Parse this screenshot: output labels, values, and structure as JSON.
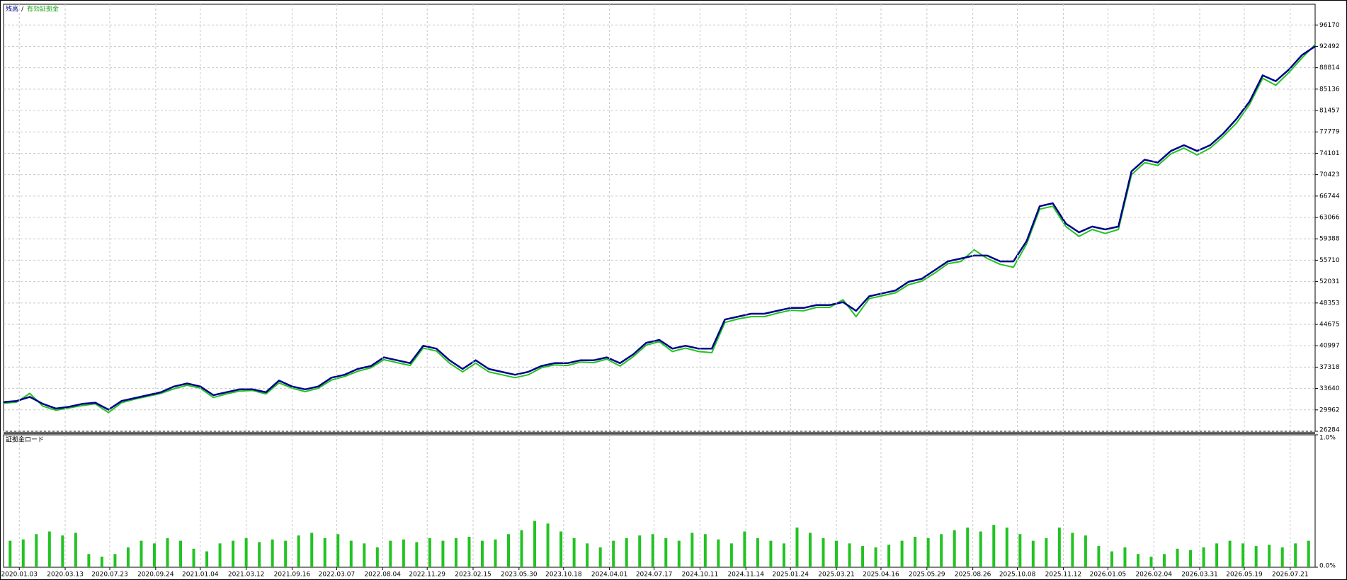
{
  "chart_data": [
    {
      "type": "line",
      "legend_separator": "/",
      "series": [
        {
          "name": "残高",
          "color": "#00008b",
          "values": [
            31300,
            31500,
            32200,
            31000,
            30200,
            30500,
            31000,
            31200,
            30000,
            31500,
            32000,
            32500,
            33000,
            34000,
            34500,
            34000,
            32500,
            33000,
            33500,
            33500,
            33000,
            35000,
            34000,
            33500,
            34000,
            35500,
            36000,
            37000,
            37500,
            39000,
            38500,
            38000,
            41000,
            40500,
            38500,
            37000,
            38500,
            37000,
            36500,
            36000,
            36500,
            37500,
            38000,
            38000,
            38500,
            38500,
            39000,
            38000,
            39500,
            41500,
            42000,
            40500,
            41000,
            40500,
            40500,
            45500,
            46000,
            46500,
            46500,
            47000,
            47500,
            47500,
            48000,
            48000,
            48500,
            47000,
            49500,
            50000,
            50500,
            52000,
            52500,
            54000,
            55500,
            56000,
            56500,
            56500,
            55500,
            55500,
            59000,
            65000,
            65500,
            62000,
            60500,
            61500,
            61000,
            61500,
            71000,
            73000,
            72500,
            74500,
            75500,
            74500,
            75500,
            77500,
            80000,
            83000,
            87500,
            86500,
            88500,
            91000,
            92500
          ]
        },
        {
          "name": "有効証拠金",
          "color": "#22c322",
          "values": [
            31100,
            31300,
            32800,
            30600,
            29900,
            30300,
            30700,
            31000,
            29500,
            31200,
            31800,
            32300,
            32800,
            33600,
            34200,
            33700,
            32100,
            32700,
            33200,
            33300,
            32700,
            34600,
            33700,
            33100,
            33700,
            35100,
            35700,
            36600,
            37200,
            38600,
            38100,
            37600,
            40600,
            40100,
            38000,
            36500,
            38000,
            36500,
            36000,
            35500,
            36000,
            37200,
            37700,
            37600,
            38200,
            38100,
            38700,
            37500,
            39100,
            41100,
            41700,
            40000,
            40600,
            40000,
            39800,
            45000,
            45600,
            46000,
            46000,
            46600,
            47100,
            47000,
            47600,
            47600,
            48900,
            46000,
            49100,
            49600,
            50100,
            51500,
            52100,
            53500,
            55100,
            55500,
            57500,
            56000,
            55000,
            54500,
            58500,
            64500,
            65000,
            61500,
            59800,
            61000,
            60300,
            61000,
            70400,
            72500,
            72000,
            74000,
            75000,
            73800,
            75000,
            77000,
            79300,
            82500,
            87000,
            85800,
            88000,
            90500,
            92800
          ]
        }
      ],
      "xlim": [
        0,
        100
      ],
      "ylim": [
        26284,
        99734
      ],
      "yticks": [
        26284,
        29962,
        33640,
        37318,
        40997,
        44675,
        48353,
        52031,
        55710,
        59388,
        63066,
        66744,
        70423,
        74101,
        77779,
        81457,
        85136,
        88814,
        92492,
        96170
      ],
      "grid": true
    },
    {
      "type": "bar",
      "title": "証拠金ロード",
      "color": "#22c322",
      "values": [
        0.2,
        0.21,
        0.25,
        0.27,
        0.24,
        0.26,
        0.1,
        0.08,
        0.1,
        0.15,
        0.2,
        0.18,
        0.22,
        0.2,
        0.14,
        0.12,
        0.18,
        0.2,
        0.22,
        0.19,
        0.21,
        0.2,
        0.24,
        0.26,
        0.22,
        0.25,
        0.2,
        0.18,
        0.15,
        0.2,
        0.21,
        0.19,
        0.22,
        0.2,
        0.22,
        0.23,
        0.2,
        0.21,
        0.25,
        0.28,
        0.35,
        0.33,
        0.27,
        0.22,
        0.18,
        0.15,
        0.2,
        0.22,
        0.24,
        0.25,
        0.22,
        0.2,
        0.26,
        0.25,
        0.21,
        0.18,
        0.27,
        0.22,
        0.2,
        0.18,
        0.3,
        0.26,
        0.22,
        0.2,
        0.18,
        0.16,
        0.15,
        0.17,
        0.2,
        0.23,
        0.22,
        0.25,
        0.28,
        0.3,
        0.27,
        0.32,
        0.3,
        0.25,
        0.2,
        0.22,
        0.3,
        0.26,
        0.24,
        0.16,
        0.12,
        0.15,
        0.1,
        0.08,
        0.1,
        0.14,
        0.13,
        0.15,
        0.18,
        0.2,
        0.18,
        0.16,
        0.17,
        0.15,
        0.18,
        0.2
      ],
      "xlim": [
        0,
        100
      ],
      "ylim": [
        0,
        1
      ],
      "yticks": [
        {
          "value": 1,
          "label": "1.0%"
        },
        {
          "value": 0,
          "label": "0.0%"
        }
      ],
      "xticks": [
        {
          "value": 1.2,
          "label": "2020.01.03"
        },
        {
          "value": 4.7,
          "label": "2020.03.13"
        },
        {
          "value": 8.1,
          "label": "2020.07.23"
        },
        {
          "value": 11.6,
          "label": "2020.09.24"
        },
        {
          "value": 15.0,
          "label": "2021.01.04"
        },
        {
          "value": 18.5,
          "label": "2021.03.12"
        },
        {
          "value": 22.0,
          "label": "2021.09.16"
        },
        {
          "value": 25.4,
          "label": "2022.03.07"
        },
        {
          "value": 28.9,
          "label": "2022.08.04"
        },
        {
          "value": 32.3,
          "label": "2022.11.29"
        },
        {
          "value": 35.8,
          "label": "2023.02.15"
        },
        {
          "value": 39.3,
          "label": "2023.05.30"
        },
        {
          "value": 42.7,
          "label": "2023.10.18"
        },
        {
          "value": 46.2,
          "label": "2024.04.01"
        },
        {
          "value": 49.6,
          "label": "2024.07.17"
        },
        {
          "value": 53.1,
          "label": "2024.10.11"
        },
        {
          "value": 56.6,
          "label": "2024.11.14"
        },
        {
          "value": 60.0,
          "label": "2025.01.24"
        },
        {
          "value": 63.5,
          "label": "2025.03.21"
        },
        {
          "value": 66.9,
          "label": "2025.04.16"
        },
        {
          "value": 70.4,
          "label": "2025.05.29"
        },
        {
          "value": 73.9,
          "label": "2025.08.26"
        },
        {
          "value": 77.3,
          "label": "2025.10.08"
        },
        {
          "value": 80.8,
          "label": "2025.11.12"
        },
        {
          "value": 84.2,
          "label": "2026.01.05"
        },
        {
          "value": 87.7,
          "label": "2026.02.04"
        },
        {
          "value": 91.2,
          "label": "2026.03.31"
        },
        {
          "value": 94.6,
          "label": "2026.05.19"
        },
        {
          "value": 98.1,
          "label": "2026.07.21"
        }
      ],
      "grid": true
    }
  ]
}
